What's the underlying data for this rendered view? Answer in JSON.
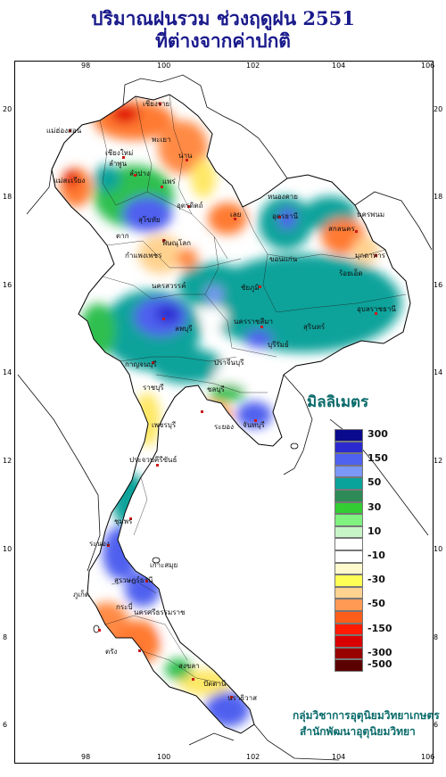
{
  "title": {
    "line1": "ปริมาณฝนรวม ช่วงฤดูฝน 2551",
    "line2": "ที่ต่างจากค่าปกติ"
  },
  "axes": {
    "lon_labels": [
      "98",
      "100",
      "102",
      "104",
      "106"
    ],
    "lat_labels": [
      "20",
      "18",
      "16",
      "14",
      "12",
      "10",
      "8",
      "6"
    ]
  },
  "legend": {
    "title": "มิลลิเมตร",
    "classes": [
      {
        "color": "#0a0a8c",
        "label": "300"
      },
      {
        "color": "#2a2ad0",
        "label": ""
      },
      {
        "color": "#4f61ef",
        "label": "150"
      },
      {
        "color": "#7b98f7",
        "label": ""
      },
      {
        "color": "#0aa39b",
        "label": "50"
      },
      {
        "color": "#2e8b57",
        "label": ""
      },
      {
        "color": "#33cc33",
        "label": "30"
      },
      {
        "color": "#7ff27f",
        "label": ""
      },
      {
        "color": "#c8f5c8",
        "label": "10"
      },
      {
        "color": "#ffffff",
        "label": ""
      },
      {
        "color": "#ffffff",
        "label": "-10"
      },
      {
        "color": "#fffacd",
        "label": ""
      },
      {
        "color": "#ffff55",
        "label": "-30"
      },
      {
        "color": "#ffd28f",
        "label": ""
      },
      {
        "color": "#ff9a55",
        "label": "-50"
      },
      {
        "color": "#ff5e1a",
        "label": ""
      },
      {
        "color": "#ff1a00",
        "label": "-150"
      },
      {
        "color": "#d90000",
        "label": ""
      },
      {
        "color": "#990000",
        "label": "-300"
      },
      {
        "color": "#5a0000",
        "label": "-500"
      }
    ]
  },
  "credits": {
    "line1": "กลุ่มวิชาการอุตุนิยมวิทยาเกษตร",
    "line2": "สำนักพัฒนาอุตุนิยมวิทยา"
  },
  "places": [
    {
      "name": "เชียงราย"
    },
    {
      "name": "แม่ฮ่องสอน"
    },
    {
      "name": "พะเยา"
    },
    {
      "name": "เชียงใหม่"
    },
    {
      "name": "ลำพูน"
    },
    {
      "name": "น่าน"
    },
    {
      "name": "ลำปาง"
    },
    {
      "name": "แพร่"
    },
    {
      "name": "แม่สะเรียง"
    },
    {
      "name": "อุตรดิตถ์"
    },
    {
      "name": "ตาก"
    },
    {
      "name": "สุโขทัย"
    },
    {
      "name": "พิษณุโลก"
    },
    {
      "name": "กำแพงเพชร"
    },
    {
      "name": "เลย"
    },
    {
      "name": "หนองคาย"
    },
    {
      "name": "อุดรธานี"
    },
    {
      "name": "นครพนม"
    },
    {
      "name": "สกลนคร"
    },
    {
      "name": "มุกดาหาร"
    },
    {
      "name": "ขอนแก่น"
    },
    {
      "name": "ชัยภูมิ"
    },
    {
      "name": "นครสวรรค์"
    },
    {
      "name": "อุบลราชธานี"
    },
    {
      "name": "ลพบุรี"
    },
    {
      "name": "นครราชสีมา"
    },
    {
      "name": "สุรินทร์"
    },
    {
      "name": "กาญจนบุรี"
    },
    {
      "name": "ปราจีนบุรี"
    },
    {
      "name": "ราชบุรี"
    },
    {
      "name": "ชลบุรี"
    },
    {
      "name": "ระยอง"
    },
    {
      "name": "จันทบุรี"
    },
    {
      "name": "ประจวบคีรีขันธ์"
    },
    {
      "name": "ชุมพร"
    },
    {
      "name": "ระนอง"
    },
    {
      "name": "สุราษฎร์ธานี"
    },
    {
      "name": "นครศรีธรรมราช"
    },
    {
      "name": "ภูเก็ต"
    },
    {
      "name": "กระบี่"
    },
    {
      "name": "ตรัง"
    },
    {
      "name": "สงขลา"
    },
    {
      "name": "ปัตตานี"
    },
    {
      "name": "นราธิวาส"
    },
    {
      "name": "เกาะสมุย"
    },
    {
      "name": "เพชรบุรี"
    },
    {
      "name": "ร้อยเอ็ด"
    },
    {
      "name": "บุรีรัมย์"
    }
  ]
}
